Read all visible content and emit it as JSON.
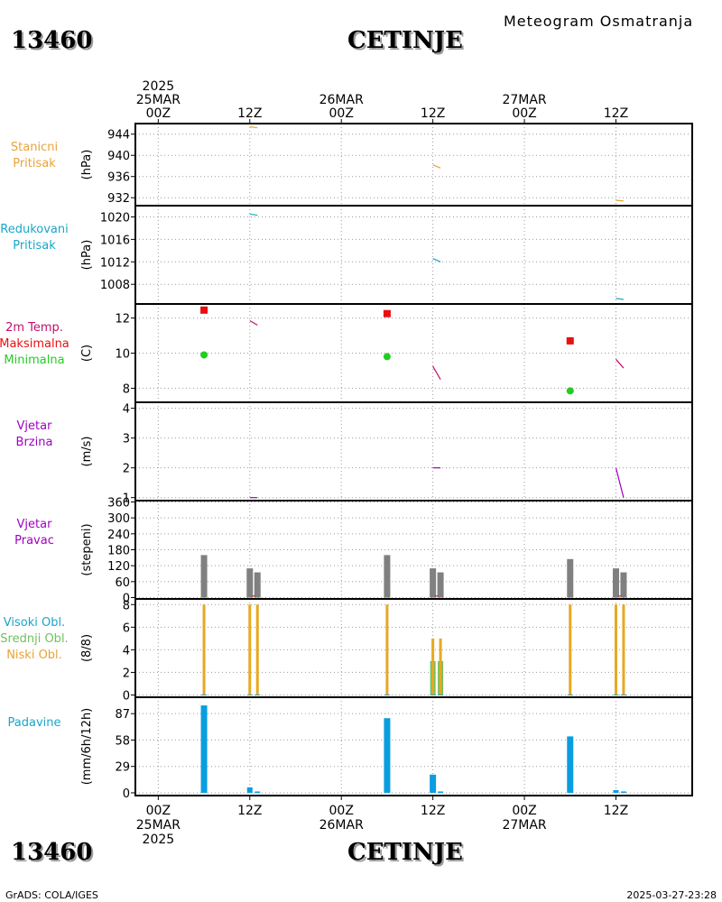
{
  "header": {
    "station_id": "13460",
    "station_name": "CETINJE",
    "subtitle": "Meteogram  Osmatranja",
    "footer_left": "GrADS: COLA/IGES",
    "footer_right": "2025-03-27-23:28"
  },
  "time_axis": {
    "top_labels": [
      {
        "t": 0,
        "lines": [
          "2025",
          "25MAR",
          "00Z"
        ]
      },
      {
        "t": 12,
        "lines": [
          "12Z"
        ]
      },
      {
        "t": 24,
        "lines": [
          "26MAR",
          "00Z"
        ]
      },
      {
        "t": 36,
        "lines": [
          "12Z"
        ]
      },
      {
        "t": 48,
        "lines": [
          "27MAR",
          "00Z"
        ]
      },
      {
        "t": 60,
        "lines": [
          "12Z"
        ]
      }
    ],
    "bottom_labels": [
      {
        "t": 0,
        "lines": [
          "00Z",
          "25MAR",
          "2025"
        ]
      },
      {
        "t": 12,
        "lines": [
          "12Z"
        ]
      },
      {
        "t": 24,
        "lines": [
          "00Z",
          "26MAR"
        ]
      },
      {
        "t": 36,
        "lines": [
          "12Z"
        ]
      },
      {
        "t": 48,
        "lines": [
          "00Z",
          "27MAR"
        ]
      },
      {
        "t": 60,
        "lines": [
          "12Z"
        ]
      }
    ],
    "xlim": [
      -3,
      70
    ],
    "unit": "hours since 2025-03-25 00Z"
  },
  "colors": {
    "orange": "#e8a33a",
    "cyan": "#1aa6c8",
    "red": "#e81010",
    "green": "#22cc22",
    "magenta": "#c0106a",
    "purple": "#a000c0",
    "gray": "#808080",
    "blue": "#0a9ee0",
    "cloud_orange": "#e8a820",
    "cloud_green": "#70c060"
  },
  "chart_data": [
    {
      "type": "line",
      "panel": "station-pressure",
      "left_label": [
        "Stanicni",
        "Pritisak"
      ],
      "left_color": "orange",
      "ylabel": "(hPa)",
      "ylim": [
        930.5,
        946
      ],
      "yticks": [
        932,
        936,
        940,
        944
      ],
      "series": [
        {
          "color": "orange",
          "segments": [
            [
              [
                12,
                945.4
              ],
              [
                13,
                945.2
              ]
            ],
            [
              [
                36,
                938.2
              ],
              [
                37,
                937.6
              ]
            ],
            [
              [
                60,
                931.5
              ],
              [
                61,
                931.4
              ]
            ]
          ]
        }
      ]
    },
    {
      "type": "line",
      "panel": "reduced-pressure",
      "left_label": [
        "Redukovani",
        "Pritisak"
      ],
      "left_color": "cyan",
      "ylabel": "(hPa)",
      "ylim": [
        1004.5,
        1022
      ],
      "yticks": [
        1008,
        1012,
        1016,
        1020
      ],
      "series": [
        {
          "color": "cyan",
          "segments": [
            [
              [
                12,
                1020.5
              ],
              [
                13,
                1020.3
              ]
            ],
            [
              [
                36,
                1012.6
              ],
              [
                37,
                1012
              ]
            ],
            [
              [
                60,
                1005.5
              ],
              [
                61,
                1005.3
              ]
            ]
          ]
        }
      ]
    },
    {
      "type": "scatter",
      "panel": "temperature",
      "left_label": [
        "2m Temp.",
        "Maksimalna",
        "Minimalna"
      ],
      "left_colors": [
        "magenta",
        "red",
        "green"
      ],
      "ylabel": "(C)",
      "ylim": [
        7.2,
        12.8
      ],
      "yticks": [
        8,
        10,
        12
      ],
      "lines": [
        {
          "color": "magenta",
          "segments": [
            [
              [
                12,
                11.85
              ],
              [
                13,
                11.6
              ]
            ],
            [
              [
                36,
                9.25
              ],
              [
                37,
                8.5
              ]
            ],
            [
              [
                60,
                9.65
              ],
              [
                61,
                9.15
              ]
            ]
          ]
        }
      ],
      "max_points": [
        [
          6,
          12.45
        ],
        [
          30,
          12.25
        ],
        [
          54,
          10.7
        ]
      ],
      "min_points": [
        [
          6,
          9.9
        ],
        [
          30,
          9.8
        ],
        [
          54,
          7.85
        ]
      ]
    },
    {
      "type": "line",
      "panel": "wind-speed",
      "left_label": [
        "Vjetar",
        "Brzina"
      ],
      "left_color": "purple",
      "ylabel": "(m/s)",
      "ylim": [
        0.9,
        4.2
      ],
      "yticks": [
        1,
        2,
        3,
        4
      ],
      "series": [
        {
          "color": "purple",
          "segments": [
            [
              [
                12,
                1
              ],
              [
                13,
                1
              ]
            ],
            [
              [
                36,
                2
              ],
              [
                37,
                2
              ]
            ],
            [
              [
                60,
                2
              ],
              [
                61,
                1
              ]
            ]
          ]
        }
      ]
    },
    {
      "type": "bar",
      "panel": "wind-direction",
      "left_label": [
        "Vjetar",
        "Pravac"
      ],
      "left_color": "purple",
      "ylabel": "(stepeni)",
      "ylim": [
        -5,
        365
      ],
      "yticks": [
        0,
        60,
        120,
        180,
        240,
        300,
        360
      ],
      "bar_color": "gray",
      "bars": [
        {
          "t": 6,
          "value": 160
        },
        {
          "t": 12,
          "value": 110
        },
        {
          "t": 13,
          "value": 95
        },
        {
          "t": 30,
          "value": 160
        },
        {
          "t": 36,
          "value": 110
        },
        {
          "t": 37,
          "value": 95
        },
        {
          "t": 54,
          "value": 145
        },
        {
          "t": 60,
          "value": 110
        },
        {
          "t": 61,
          "value": 95
        }
      ],
      "ticks_red": [
        12.5,
        36.5,
        60.5
      ]
    },
    {
      "type": "bar",
      "panel": "clouds",
      "left_label": [
        "Visoki Obl.",
        "Srednji Obl.",
        "Niski Obl."
      ],
      "left_colors": [
        "cyan",
        "cloud_green",
        "orange"
      ],
      "ylabel": "(8/8)",
      "ylim": [
        -0.2,
        8.5
      ],
      "yticks": [
        0,
        2,
        4,
        6,
        8
      ],
      "bars": [
        {
          "t": 6,
          "low": 8,
          "mid": 0
        },
        {
          "t": 12,
          "low": 8,
          "mid": 0
        },
        {
          "t": 13,
          "low": 8,
          "mid": 0
        },
        {
          "t": 30,
          "low": 8,
          "mid": 0
        },
        {
          "t": 36,
          "low": 5,
          "mid": 3
        },
        {
          "t": 37,
          "low": 5,
          "mid": 3
        },
        {
          "t": 54,
          "low": 8,
          "mid": 0
        },
        {
          "t": 60,
          "low": 8,
          "mid": 0
        },
        {
          "t": 61,
          "low": 8,
          "mid": 0
        }
      ]
    },
    {
      "type": "bar",
      "panel": "precipitation",
      "left_label": [
        "Padavine"
      ],
      "left_color": "cyan",
      "ylabel": "(mm/6h/12h)",
      "ylim": [
        -3,
        105
      ],
      "yticks": [
        0,
        29,
        58,
        87
      ],
      "bar_color": "blue",
      "bars": [
        {
          "t": 6,
          "value": 96
        },
        {
          "t": 12,
          "value": 6
        },
        {
          "t": 13,
          "value": 1
        },
        {
          "t": 30,
          "value": 82
        },
        {
          "t": 36,
          "value": 20
        },
        {
          "t": 37,
          "value": 1
        },
        {
          "t": 54,
          "value": 62
        },
        {
          "t": 60,
          "value": 3
        },
        {
          "t": 61,
          "value": 1
        }
      ]
    }
  ]
}
